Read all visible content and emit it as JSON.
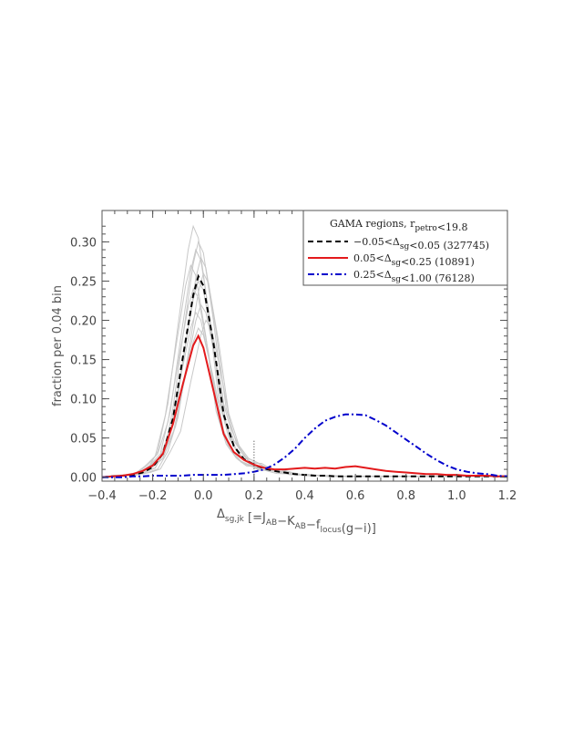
{
  "chart_data": {
    "type": "line",
    "xlabel": {
      "text": "Δ",
      "sub": "sg,jk",
      "bracket": "[=J",
      "parts": [
        {
          "t": "[=J",
          "sub": "AB"
        },
        {
          "t": "−K",
          "sub": "AB"
        },
        {
          "t": "−f",
          "sub": "locus"
        },
        {
          "t": "(g−i)]",
          "sub": ""
        }
      ]
    },
    "ylabel": "fraction per 0.04 bin",
    "xlim": [
      -0.4,
      1.2
    ],
    "ylim": [
      -0.005,
      0.34
    ],
    "xticks": [
      -0.4,
      -0.2,
      0.0,
      0.2,
      0.4,
      0.6,
      0.8,
      1.0,
      1.2
    ],
    "xtick_labels": [
      "−0.4",
      "−0.2",
      "0.0",
      "0.2",
      "0.4",
      "0.6",
      "0.8",
      "1.0",
      "1.2"
    ],
    "yticks": [
      0.0,
      0.05,
      0.1,
      0.15,
      0.2,
      0.25,
      0.3
    ],
    "ytick_labels": [
      "0.00",
      "0.05",
      "0.10",
      "0.15",
      "0.20",
      "0.25",
      "0.30"
    ],
    "legend": {
      "title": "GAMA regions, r",
      "title_sub": "petro",
      "title_tail": "<19.8",
      "placement": "top-right",
      "entries": [
        {
          "pre": "−0.05<Δ",
          "sub": "sg",
          "post": "<0.05 (327745)"
        },
        {
          "pre": "0.05<Δ",
          "sub": "sg",
          "post": "<0.25 (10891)"
        },
        {
          "pre": "0.25<Δ",
          "sub": "sg",
          "post": "<1.00 (76128)"
        }
      ]
    },
    "series": [
      {
        "style": "dashed",
        "color": "#000000",
        "x": [
          -0.4,
          -0.36,
          -0.32,
          -0.28,
          -0.24,
          -0.2,
          -0.16,
          -0.12,
          -0.08,
          -0.04,
          -0.02,
          0.0,
          0.04,
          0.08,
          0.12,
          0.16,
          0.2,
          0.24,
          0.28,
          0.32,
          0.36,
          0.4,
          0.44,
          0.48,
          0.52,
          0.56,
          0.6,
          0.64,
          0.68,
          0.72,
          0.76,
          0.8,
          0.84,
          0.88,
          0.92,
          0.96,
          1.0,
          1.04,
          1.08,
          1.12,
          1.16,
          1.2
        ],
        "y": [
          0.0,
          0.001,
          0.002,
          0.003,
          0.006,
          0.013,
          0.03,
          0.075,
          0.155,
          0.232,
          0.256,
          0.244,
          0.17,
          0.08,
          0.04,
          0.023,
          0.016,
          0.011,
          0.008,
          0.006,
          0.004,
          0.003,
          0.002,
          0.002,
          0.001,
          0.001,
          0.001,
          0.001,
          0.001,
          0.001,
          0.001,
          0.001,
          0.001,
          0.001,
          0.001,
          0.001,
          0.001,
          0.001,
          0.001,
          0.001,
          0.001,
          0.001
        ]
      },
      {
        "style": "solid",
        "color": "#e31a1c",
        "x": [
          -0.4,
          -0.36,
          -0.32,
          -0.28,
          -0.24,
          -0.2,
          -0.16,
          -0.12,
          -0.08,
          -0.04,
          -0.02,
          0.0,
          0.04,
          0.08,
          0.12,
          0.16,
          0.2,
          0.24,
          0.28,
          0.32,
          0.36,
          0.4,
          0.44,
          0.48,
          0.52,
          0.56,
          0.6,
          0.64,
          0.68,
          0.72,
          0.76,
          0.8,
          0.84,
          0.88,
          0.92,
          0.96,
          1.0,
          1.04,
          1.08,
          1.12,
          1.16,
          1.2
        ],
        "y": [
          0.0,
          0.001,
          0.002,
          0.004,
          0.008,
          0.015,
          0.03,
          0.068,
          0.12,
          0.168,
          0.18,
          0.165,
          0.11,
          0.055,
          0.032,
          0.022,
          0.016,
          0.012,
          0.01,
          0.01,
          0.011,
          0.012,
          0.011,
          0.012,
          0.011,
          0.013,
          0.014,
          0.012,
          0.01,
          0.008,
          0.007,
          0.006,
          0.005,
          0.004,
          0.004,
          0.003,
          0.003,
          0.002,
          0.002,
          0.002,
          0.001,
          0.001
        ]
      },
      {
        "style": "dashdot",
        "color": "#0000cc",
        "x": [
          -0.4,
          -0.36,
          -0.32,
          -0.28,
          -0.24,
          -0.2,
          -0.16,
          -0.12,
          -0.08,
          -0.04,
          0.0,
          0.04,
          0.08,
          0.12,
          0.16,
          0.2,
          0.24,
          0.28,
          0.32,
          0.36,
          0.4,
          0.44,
          0.48,
          0.52,
          0.56,
          0.6,
          0.64,
          0.68,
          0.72,
          0.76,
          0.8,
          0.84,
          0.88,
          0.92,
          0.96,
          1.0,
          1.04,
          1.08,
          1.12,
          1.16,
          1.2
        ],
        "y": [
          0.0,
          0.0,
          0.0,
          0.001,
          0.001,
          0.002,
          0.002,
          0.002,
          0.002,
          0.003,
          0.003,
          0.003,
          0.003,
          0.004,
          0.005,
          0.007,
          0.01,
          0.016,
          0.025,
          0.036,
          0.05,
          0.062,
          0.072,
          0.077,
          0.08,
          0.08,
          0.079,
          0.073,
          0.066,
          0.057,
          0.048,
          0.039,
          0.03,
          0.022,
          0.015,
          0.01,
          0.007,
          0.005,
          0.004,
          0.002,
          0.001
        ]
      }
    ],
    "background_curves": {
      "color": "#c8c8c8",
      "peak_heights": [
        0.32,
        0.3,
        0.29,
        0.28,
        0.27,
        0.26,
        0.25,
        0.24,
        0.22,
        0.21,
        0.2,
        0.19
      ],
      "peak_x": [
        -0.02,
        0.0,
        -0.01,
        0.01,
        -0.03,
        0.02,
        0.0,
        -0.02,
        0.01,
        -0.01,
        0.03,
        0.0
      ]
    },
    "marker_line": {
      "x": 0.2,
      "y_top": 0.048,
      "style": "dotted"
    }
  }
}
